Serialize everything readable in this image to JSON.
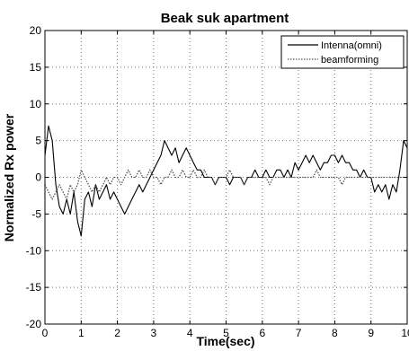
{
  "chart_data": {
    "type": "line",
    "title": "Beak suk apartment",
    "xlabel": "Time(sec)",
    "ylabel": "Normalized Rx power",
    "xlim": [
      0,
      10
    ],
    "ylim": [
      -20,
      20
    ],
    "xticks": [
      "0",
      "1",
      "2",
      "3",
      "4",
      "5",
      "6",
      "7",
      "8",
      "9",
      "10"
    ],
    "yticks": [
      "20",
      "15",
      "10",
      "5",
      "0",
      "-5",
      "-10",
      "-15",
      "-20"
    ],
    "grid": true,
    "legend_position": "top-right",
    "colors": {
      "series_1": "#000000",
      "series_2": "#555555",
      "grid": "#777777"
    },
    "series": [
      {
        "name": "Intenna(omni)",
        "style": "solid",
        "x": [
          0,
          0.1,
          0.2,
          0.3,
          0.4,
          0.5,
          0.6,
          0.7,
          0.8,
          0.9,
          1.0,
          1.1,
          1.2,
          1.3,
          1.4,
          1.5,
          1.6,
          1.7,
          1.8,
          1.9,
          2.0,
          2.1,
          2.2,
          2.3,
          2.4,
          2.5,
          2.6,
          2.7,
          2.8,
          2.9,
          3.0,
          3.1,
          3.2,
          3.3,
          3.4,
          3.5,
          3.6,
          3.7,
          3.8,
          3.9,
          4.0,
          4.1,
          4.2,
          4.3,
          4.4,
          4.5,
          4.6,
          4.7,
          4.8,
          4.9,
          5.0,
          5.1,
          5.2,
          5.3,
          5.4,
          5.5,
          5.6,
          5.7,
          5.8,
          5.9,
          6.0,
          6.1,
          6.2,
          6.3,
          6.4,
          6.5,
          6.6,
          6.7,
          6.8,
          6.9,
          7.0,
          7.1,
          7.2,
          7.3,
          7.4,
          7.5,
          7.6,
          7.7,
          7.8,
          7.9,
          8.0,
          8.1,
          8.2,
          8.3,
          8.4,
          8.5,
          8.6,
          8.7,
          8.8,
          8.9,
          9.0,
          9.1,
          9.2,
          9.3,
          9.4,
          9.5,
          9.6,
          9.7,
          9.8,
          9.9,
          10.0
        ],
        "y": [
          3,
          7,
          5,
          -1,
          -4,
          -5,
          -3,
          -5,
          -2,
          -6,
          -8,
          -3,
          -2,
          -4,
          -1,
          -3,
          -2,
          -1,
          -3,
          -2,
          -3,
          -4,
          -5,
          -4,
          -3,
          -2,
          -1,
          -2,
          -1,
          0,
          1,
          2,
          3,
          5,
          4,
          3,
          4,
          2,
          3,
          4,
          3,
          2,
          1,
          1,
          0,
          0,
          0,
          -1,
          0,
          0,
          0,
          -1,
          0,
          0,
          0,
          -1,
          0,
          0,
          1,
          0,
          0,
          1,
          0,
          0,
          1,
          1,
          0,
          1,
          0,
          2,
          1,
          2,
          3,
          2,
          3,
          2,
          1,
          2,
          2,
          3,
          3,
          2,
          3,
          2,
          2,
          1,
          1,
          0,
          1,
          0,
          0,
          -2,
          -1,
          -2,
          -1,
          -3,
          -1,
          -2,
          1,
          5,
          4
        ]
      },
      {
        "name": "beamforming",
        "style": "dotted",
        "x": [
          0,
          0.1,
          0.2,
          0.3,
          0.4,
          0.5,
          0.6,
          0.7,
          0.8,
          0.9,
          1.0,
          1.1,
          1.2,
          1.3,
          1.4,
          1.5,
          1.6,
          1.7,
          1.8,
          1.9,
          2.0,
          2.1,
          2.2,
          2.3,
          2.4,
          2.5,
          2.6,
          2.7,
          2.8,
          2.9,
          3.0,
          3.1,
          3.2,
          3.3,
          3.4,
          3.5,
          3.6,
          3.7,
          3.8,
          3.9,
          4.0,
          4.1,
          4.2,
          4.3,
          4.4,
          4.5,
          4.6,
          4.7,
          4.8,
          4.9,
          5.0,
          5.1,
          5.2,
          5.3,
          5.4,
          5.5,
          5.6,
          5.7,
          5.8,
          5.9,
          6.0,
          6.1,
          6.2,
          6.3,
          6.4,
          6.5,
          6.6,
          6.7,
          6.8,
          6.9,
          7.0,
          7.1,
          7.2,
          7.3,
          7.4,
          7.5,
          7.6,
          7.7,
          7.8,
          7.9,
          8.0,
          8.1,
          8.2,
          8.3,
          8.4,
          8.5,
          8.6,
          8.7,
          8.8,
          8.9,
          9.0,
          9.1,
          9.2,
          9.3,
          9.4,
          9.5,
          9.6,
          9.7,
          9.8,
          9.9,
          10.0
        ],
        "y": [
          -1,
          -2,
          -3,
          -2,
          -1,
          -2,
          -3,
          -1,
          -2,
          -1,
          1,
          0,
          -1,
          -2,
          -1,
          -2,
          -1,
          0,
          -1,
          0,
          0,
          -1,
          0,
          1,
          0,
          0,
          1,
          0,
          0,
          1,
          0,
          0,
          -1,
          0,
          0,
          1,
          0,
          0,
          1,
          0,
          0,
          1,
          0,
          0,
          1,
          0,
          0,
          -1,
          0,
          0,
          0,
          1,
          0,
          0,
          0,
          -1,
          0,
          0,
          0,
          0,
          0,
          0,
          -1,
          0,
          0,
          0,
          0,
          0,
          0,
          0,
          0,
          0,
          0,
          0,
          0,
          1,
          0,
          0,
          0,
          0,
          0,
          0,
          -1,
          0,
          0,
          0,
          0,
          0,
          0,
          0,
          0,
          0,
          0,
          0,
          0,
          0,
          0,
          0,
          0,
          0,
          0
        ]
      }
    ]
  }
}
